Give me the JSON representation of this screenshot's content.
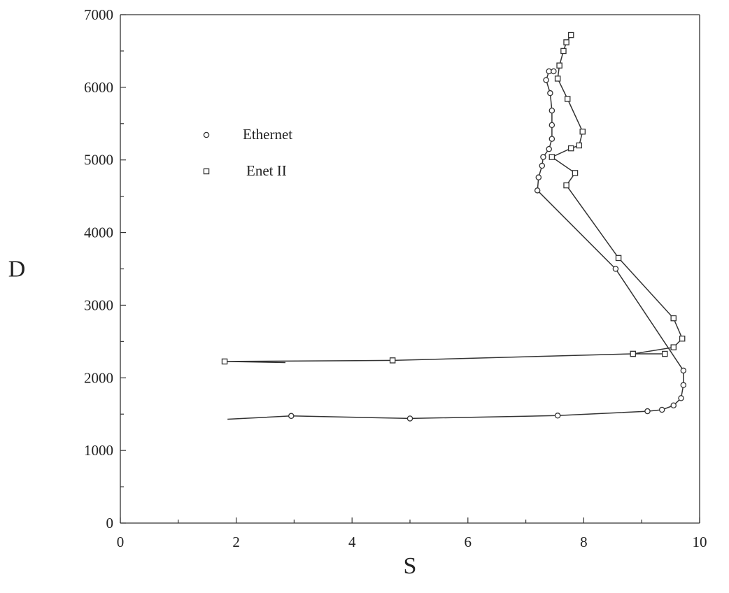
{
  "chart_data": {
    "type": "line",
    "title": "",
    "xlabel": "S",
    "ylabel": "D",
    "xlim": [
      0,
      10
    ],
    "ylim": [
      0,
      7000
    ],
    "x_ticks": [
      0,
      2,
      4,
      6,
      8,
      10
    ],
    "x_tick_labels": [
      "0",
      "2",
      "4",
      "6",
      "8",
      "10"
    ],
    "y_ticks": [
      0,
      1000,
      2000,
      3000,
      4000,
      5000,
      6000,
      7000
    ],
    "y_tick_labels": [
      "0",
      "1000",
      "2000",
      "3000",
      "4000",
      "5000",
      "6000",
      "7000"
    ],
    "grid": false,
    "legend_position": "upper-left",
    "line_color": "#333333",
    "series": [
      {
        "name": "Ethernet",
        "marker": "circle",
        "x": [
          1.85,
          2.95,
          5.0,
          7.55,
          9.1,
          9.35,
          9.55,
          9.68,
          9.72,
          9.72,
          8.55,
          7.2,
          7.22,
          7.28,
          7.3,
          7.4,
          7.45,
          7.45,
          7.45,
          7.42,
          7.35,
          7.4,
          7.48
        ],
        "y": [
          1430,
          1475,
          1440,
          1480,
          1540,
          1560,
          1620,
          1720,
          1900,
          2100,
          3500,
          4580,
          4760,
          4920,
          5040,
          5150,
          5290,
          5480,
          5680,
          5920,
          6100,
          6220,
          6220
        ]
      },
      {
        "name": "Enet II",
        "marker": "square",
        "x": [
          2.85,
          1.8,
          4.7,
          8.85,
          9.4,
          8.85,
          9.55,
          9.7,
          9.55,
          8.6,
          7.7,
          7.85,
          7.45,
          7.78,
          7.92,
          7.98,
          7.72,
          7.55,
          7.58,
          7.65,
          7.7,
          7.78
        ],
        "y": [
          2210,
          2225,
          2240,
          2330,
          2330,
          2330,
          2420,
          2540,
          2820,
          3650,
          4650,
          4820,
          5040,
          5160,
          5200,
          5390,
          5840,
          6120,
          6300,
          6500,
          6620,
          6720
        ]
      }
    ]
  }
}
